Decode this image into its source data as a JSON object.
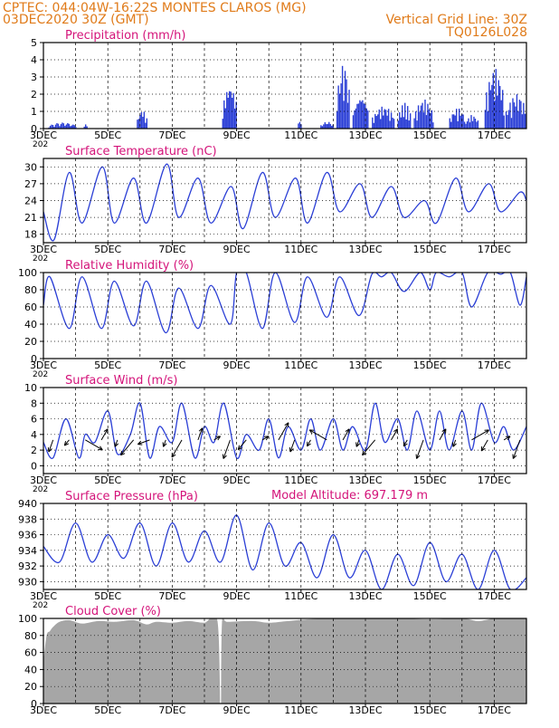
{
  "header": {
    "line1": "CPTEC:   044:04W-16:22S   MONTES CLAROS (MG)",
    "line2": "03DEC2020 30Z (GMT)",
    "vertical_grid": "Vertical Grid Line: 30Z",
    "code": "TQ0126L028",
    "model_altitude": "Model Altitude: 697.179 m"
  },
  "colors": {
    "header_text": "#e07b1a",
    "panel_title": "#d4147a",
    "series_line": "#2b3fd6",
    "bars": "#2b3fd6",
    "cloud_fill": "#a6a6a6",
    "grid": "#000000"
  },
  "x_axis": {
    "tick_labels": [
      "3DEC",
      "5DEC",
      "7DEC",
      "9DEC",
      "11DEC",
      "13DEC",
      "15DEC",
      "17DEC"
    ],
    "tick_days": [
      3,
      5,
      7,
      9,
      11,
      13,
      15,
      17
    ],
    "gridline_days": [
      3,
      4,
      5,
      6,
      7,
      8,
      9,
      10,
      11,
      12,
      13,
      14,
      15,
      16,
      17,
      18
    ],
    "range_days": [
      3,
      18
    ],
    "year_fragment": "202"
  },
  "chart_data": [
    {
      "id": "precip",
      "type": "bar",
      "title": "Precipitation (mm/h)",
      "ylim": [
        0,
        5
      ],
      "yticks": [
        "0",
        "1",
        "2",
        "3",
        "4",
        "5"
      ],
      "segments": [
        {
          "x": [
            3.15,
            4.0
          ],
          "amp": 0.35,
          "freq": 5
        },
        {
          "x": [
            4.25,
            4.35
          ],
          "amp": 0.25,
          "freq": 3
        },
        {
          "x": [
            5.9,
            6.2
          ],
          "amp": 1.1,
          "freq": 4
        },
        {
          "x": [
            8.55,
            9.0
          ],
          "amp": 2.6,
          "freq": 5
        },
        {
          "x": [
            10.9,
            11.0
          ],
          "amp": 0.7,
          "freq": 2
        },
        {
          "x": [
            11.6,
            12.0
          ],
          "amp": 0.4,
          "freq": 3
        },
        {
          "x": [
            12.1,
            12.5
          ],
          "amp": 3.8,
          "freq": 6
        },
        {
          "x": [
            12.6,
            13.1
          ],
          "amp": 2.0,
          "freq": 6
        },
        {
          "x": [
            13.2,
            13.9
          ],
          "amp": 1.3,
          "freq": 7
        },
        {
          "x": [
            14.0,
            14.4
          ],
          "amp": 1.5,
          "freq": 5
        },
        {
          "x": [
            14.5,
            15.1
          ],
          "amp": 1.7,
          "freq": 6
        },
        {
          "x": [
            15.6,
            16.1
          ],
          "amp": 1.2,
          "freq": 5
        },
        {
          "x": [
            16.1,
            16.5
          ],
          "amp": 0.8,
          "freq": 4
        },
        {
          "x": [
            16.7,
            17.3
          ],
          "amp": 3.5,
          "freq": 6
        },
        {
          "x": [
            17.35,
            18.0
          ],
          "amp": 2.0,
          "freq": 6
        }
      ]
    },
    {
      "id": "temp",
      "type": "line",
      "title": "Surface Temperature (nC)",
      "ylim": [
        16.5,
        31.5
      ],
      "yticks": [
        18,
        21,
        24,
        27,
        30
      ],
      "x": [
        3.0,
        3.33,
        3.8,
        4.2,
        4.83,
        5.2,
        5.8,
        6.2,
        6.83,
        7.2,
        7.8,
        8.2,
        8.83,
        9.2,
        9.8,
        10.2,
        10.83,
        11.2,
        11.8,
        12.2,
        12.83,
        13.2,
        13.8,
        14.2,
        14.83,
        15.2,
        15.8,
        16.2,
        16.83,
        17.2,
        17.8,
        18.0
      ],
      "values": [
        22,
        17,
        29,
        20,
        30,
        20,
        28,
        20,
        30.5,
        21,
        28,
        20,
        26.5,
        19,
        29,
        21,
        28,
        20,
        29,
        22,
        27,
        21,
        26.5,
        21,
        24,
        20,
        28,
        22,
        27,
        22,
        25.5,
        24
      ]
    },
    {
      "id": "rh",
      "type": "line",
      "title": "Relative Humidity (%)",
      "ylim": [
        0,
        100
      ],
      "yticks": [
        0,
        20,
        40,
        60,
        80,
        100
      ],
      "x": [
        3.0,
        3.2,
        3.8,
        4.2,
        4.8,
        5.2,
        5.8,
        6.2,
        6.8,
        7.2,
        7.8,
        8.2,
        8.8,
        9.0,
        9.3,
        9.8,
        10.2,
        10.8,
        11.2,
        11.8,
        12.2,
        12.8,
        13.2,
        13.5,
        13.8,
        14.2,
        14.7,
        15.0,
        15.2,
        15.6,
        16.0,
        16.3,
        16.8,
        17.2,
        17.5,
        17.8,
        18.0
      ],
      "values": [
        62,
        95,
        35,
        95,
        35,
        90,
        38,
        90,
        30,
        82,
        35,
        85,
        40,
        100,
        100,
        35,
        100,
        42,
        95,
        48,
        95,
        50,
        98,
        95,
        100,
        78,
        100,
        80,
        100,
        95,
        100,
        60,
        100,
        98,
        100,
        62,
        95
      ]
    },
    {
      "id": "wind",
      "type": "line",
      "title": "Surface Wind (m/s)",
      "ylim": [
        -1,
        10
      ],
      "yticks": [
        0,
        2,
        4,
        6,
        8,
        10
      ],
      "x": [
        3.0,
        3.3,
        3.7,
        4.1,
        4.3,
        4.6,
        5.0,
        5.3,
        5.7,
        6.0,
        6.3,
        6.6,
        7.0,
        7.3,
        7.7,
        8.0,
        8.3,
        8.6,
        9.0,
        9.3,
        9.7,
        10.0,
        10.3,
        10.6,
        11.0,
        11.3,
        11.6,
        12.0,
        12.3,
        12.6,
        13.0,
        13.3,
        13.6,
        14.0,
        14.3,
        14.6,
        15.0,
        15.3,
        15.6,
        16.0,
        16.3,
        16.6,
        17.0,
        17.3,
        17.6,
        18.0
      ],
      "values": [
        3,
        1,
        6,
        1,
        4,
        3,
        7,
        1.5,
        4,
        8,
        1,
        5,
        3,
        8,
        1,
        5,
        3,
        8,
        1,
        4,
        2,
        6,
        1,
        5,
        2,
        6,
        2,
        6,
        2,
        5,
        2,
        8,
        3,
        6,
        2,
        7,
        2,
        7,
        2,
        7,
        2,
        8,
        3,
        5,
        2,
        5
      ]
    },
    {
      "id": "pressure",
      "type": "line",
      "title": "Surface Pressure (hPa)",
      "ylim": [
        929,
        940
      ],
      "yticks": [
        930,
        932,
        934,
        936,
        938,
        940
      ],
      "x": [
        3.0,
        3.5,
        4.0,
        4.5,
        5.0,
        5.5,
        6.0,
        6.5,
        7.0,
        7.5,
        8.0,
        8.5,
        9.0,
        9.5,
        10.0,
        10.5,
        11.0,
        11.5,
        12.0,
        12.5,
        13.0,
        13.5,
        14.0,
        14.5,
        15.0,
        15.5,
        16.0,
        16.5,
        17.0,
        17.5,
        18.0
      ],
      "values": [
        934.5,
        932.5,
        937.5,
        932.5,
        936,
        933,
        937.5,
        932,
        937.5,
        932.5,
        936.5,
        932.5,
        938.5,
        931.5,
        937.5,
        932,
        935,
        930.5,
        936,
        930.5,
        934,
        929,
        933.5,
        929.5,
        935,
        930,
        933.5,
        929,
        934,
        929,
        930.5
      ]
    },
    {
      "id": "cloud",
      "type": "area",
      "title": "Cloud Cover (%)",
      "ylim": [
        0,
        100
      ],
      "yticks": [
        0,
        20,
        40,
        60,
        80,
        100
      ],
      "x": [
        3.0,
        3.1,
        3.2,
        3.3,
        3.5,
        3.8,
        4.2,
        4.7,
        5.2,
        5.8,
        6.2,
        6.5,
        7.0,
        7.5,
        8.0,
        8.4,
        8.5,
        8.55,
        8.7,
        9.5,
        10.0,
        10.6,
        11.2,
        12.0,
        13.0,
        14.0,
        15.0,
        16.0,
        16.5,
        17.0,
        17.5,
        18.0
      ],
      "values": [
        50,
        80,
        85,
        90,
        96,
        98,
        94,
        97,
        96,
        98,
        93,
        96,
        95,
        97,
        95,
        98,
        2,
        98,
        96,
        97,
        95,
        97,
        99,
        100,
        100,
        100,
        99,
        100,
        97,
        100,
        100,
        100
      ]
    }
  ]
}
